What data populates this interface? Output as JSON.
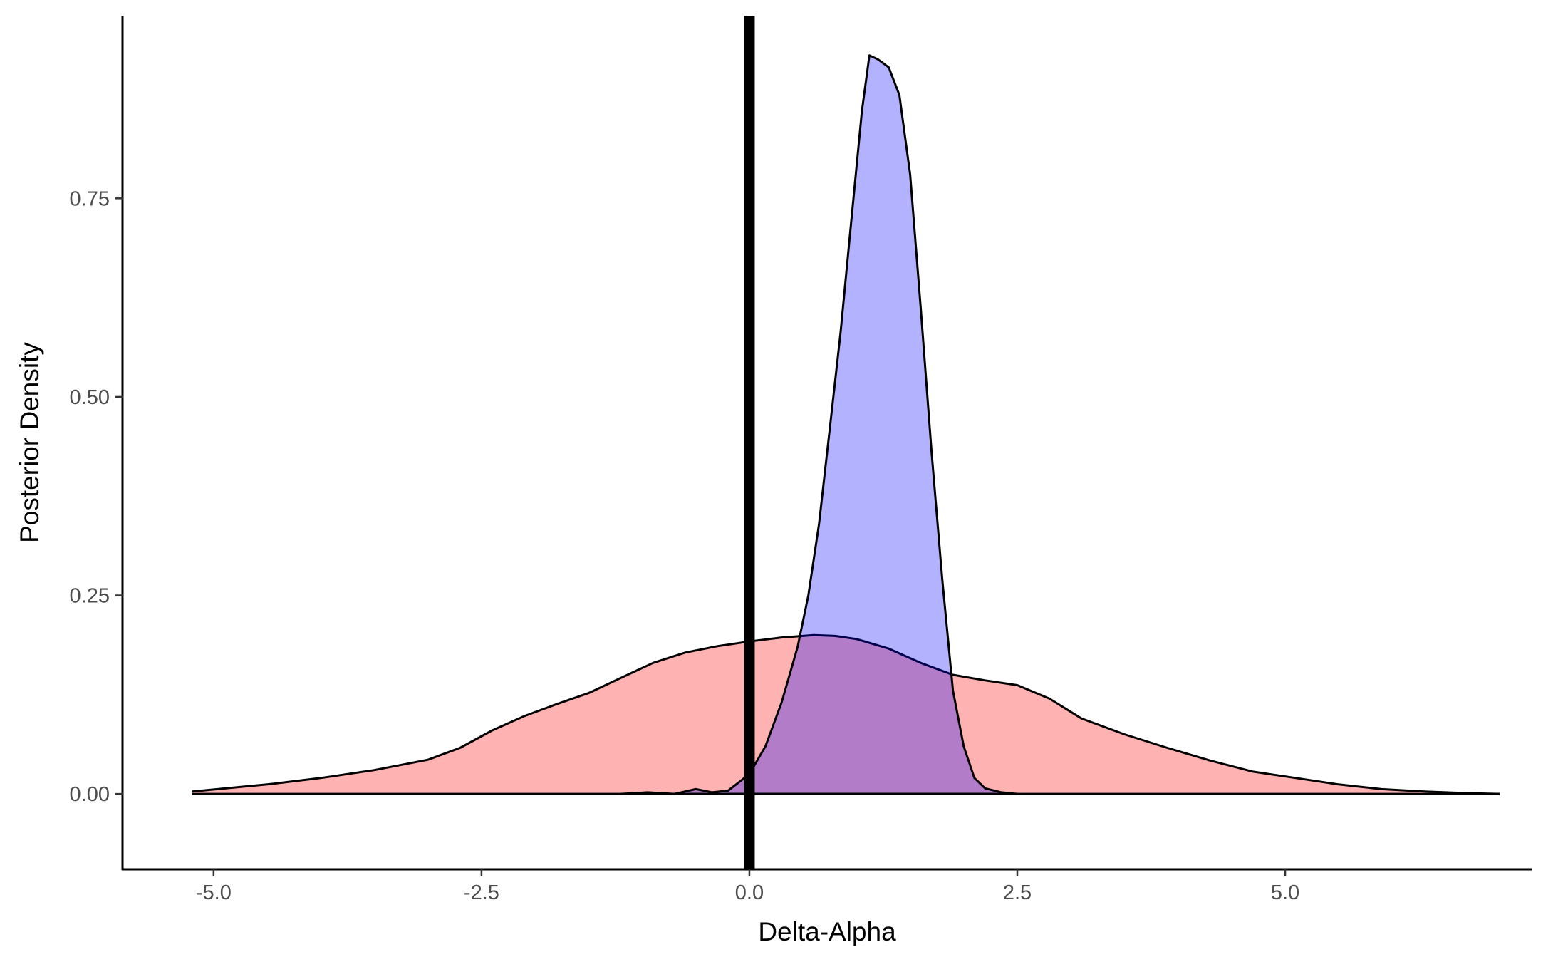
{
  "chart_data": {
    "type": "area",
    "title": "",
    "xlabel": "Delta-Alpha",
    "ylabel": "Posterior Density",
    "xlim": [
      -5.85,
      7.3
    ],
    "ylim": [
      -0.095,
      0.98
    ],
    "x_ticks": [
      -5.0,
      -2.5,
      0.0,
      2.5,
      5.0
    ],
    "x_tick_labels": [
      "-5.0",
      "-2.5",
      "0.0",
      "2.5",
      "5.0"
    ],
    "y_ticks": [
      0.0,
      0.25,
      0.5,
      0.75
    ],
    "y_tick_labels": [
      "0.00",
      "0.25",
      "0.50",
      "0.75"
    ],
    "grid": false,
    "legend": "none",
    "reference_line": {
      "x": 0.0,
      "color": "#000000"
    },
    "series": [
      {
        "fill": "#ff0000",
        "fill_opacity": 0.3,
        "stroke": "#000000",
        "points": [
          [
            -5.2,
            0.003
          ],
          [
            -4.5,
            0.012
          ],
          [
            -4.0,
            0.02
          ],
          [
            -3.5,
            0.03
          ],
          [
            -3.0,
            0.043
          ],
          [
            -2.7,
            0.058
          ],
          [
            -2.4,
            0.08
          ],
          [
            -2.1,
            0.098
          ],
          [
            -1.8,
            0.113
          ],
          [
            -1.5,
            0.127
          ],
          [
            -1.2,
            0.146
          ],
          [
            -0.9,
            0.165
          ],
          [
            -0.6,
            0.178
          ],
          [
            -0.3,
            0.186
          ],
          [
            0.0,
            0.192
          ],
          [
            0.3,
            0.197
          ],
          [
            0.6,
            0.2
          ],
          [
            0.8,
            0.199
          ],
          [
            1.0,
            0.195
          ],
          [
            1.3,
            0.183
          ],
          [
            1.6,
            0.165
          ],
          [
            1.9,
            0.15
          ],
          [
            2.2,
            0.143
          ],
          [
            2.5,
            0.137
          ],
          [
            2.8,
            0.12
          ],
          [
            3.1,
            0.095
          ],
          [
            3.5,
            0.075
          ],
          [
            3.9,
            0.058
          ],
          [
            4.3,
            0.042
          ],
          [
            4.7,
            0.028
          ],
          [
            5.1,
            0.02
          ],
          [
            5.5,
            0.012
          ],
          [
            5.9,
            0.006
          ],
          [
            6.3,
            0.003
          ],
          [
            6.7,
            0.001
          ],
          [
            7.0,
            0.0
          ]
        ]
      },
      {
        "fill": "#0000ff",
        "fill_opacity": 0.3,
        "stroke": "#000000",
        "points": [
          [
            -1.2,
            0.0
          ],
          [
            -0.95,
            0.002
          ],
          [
            -0.7,
            0.0
          ],
          [
            -0.5,
            0.006
          ],
          [
            -0.35,
            0.002
          ],
          [
            -0.2,
            0.004
          ],
          [
            0.0,
            0.025
          ],
          [
            0.15,
            0.06
          ],
          [
            0.3,
            0.115
          ],
          [
            0.45,
            0.185
          ],
          [
            0.55,
            0.25
          ],
          [
            0.65,
            0.34
          ],
          [
            0.75,
            0.46
          ],
          [
            0.85,
            0.58
          ],
          [
            0.95,
            0.72
          ],
          [
            1.05,
            0.86
          ],
          [
            1.12,
            0.93
          ],
          [
            1.2,
            0.925
          ],
          [
            1.3,
            0.915
          ],
          [
            1.4,
            0.88
          ],
          [
            1.5,
            0.78
          ],
          [
            1.6,
            0.61
          ],
          [
            1.7,
            0.43
          ],
          [
            1.8,
            0.27
          ],
          [
            1.9,
            0.13
          ],
          [
            2.0,
            0.06
          ],
          [
            2.1,
            0.02
          ],
          [
            2.2,
            0.007
          ],
          [
            2.35,
            0.002
          ],
          [
            2.5,
            0.0
          ]
        ]
      }
    ]
  }
}
